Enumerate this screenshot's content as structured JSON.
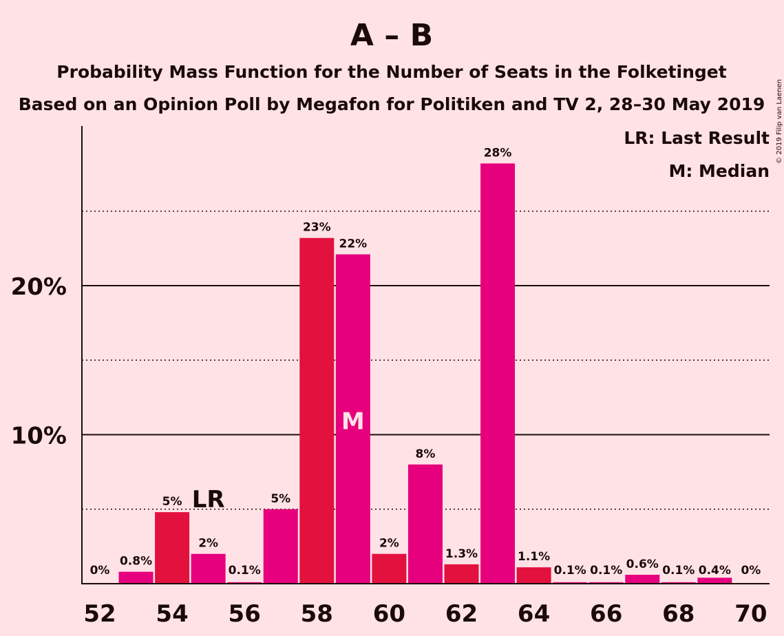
{
  "chart_data": {
    "type": "bar",
    "title": "A – B",
    "subtitle_1": "Probability Mass Function for the Number of Seats in the Folketinget",
    "subtitle_2": "Based on an Opinion Poll by Megafon for Politiken and TV 2, 28–30 May 2019",
    "copyright": "© 2019 Filip van Laenen",
    "legend": {
      "position": "top-right",
      "lr": "LR: Last Result",
      "median": "M: Median"
    },
    "ylim": [
      0,
      30
    ],
    "y_ticks": [
      {
        "value": 10,
        "label": "10%"
      },
      {
        "value": 20,
        "label": "20%"
      }
    ],
    "y_dotted": [
      5,
      15,
      25
    ],
    "x_ticks": [
      52,
      54,
      56,
      58,
      60,
      62,
      64,
      66,
      68,
      70
    ],
    "last_result_seat": 55,
    "last_result_marker": "LR",
    "median_seat": 59,
    "median_marker": "M",
    "colors": {
      "background": "#FFE2E6",
      "primary": "#E6007E",
      "secondary": "#E3113E",
      "text": "#1a0a0a",
      "median_text": "#FFE2E6"
    },
    "bars": [
      {
        "seat": 52,
        "value": 0,
        "label": "0%",
        "color": "primary"
      },
      {
        "seat": 53,
        "value": 0.8,
        "label": "0.8%",
        "color": "primary"
      },
      {
        "seat": 54,
        "value": 4.8,
        "label": "5%",
        "color": "secondary"
      },
      {
        "seat": 55,
        "value": 2.0,
        "label": "2%",
        "color": "primary"
      },
      {
        "seat": 56,
        "value": 0.1,
        "label": "0.1%",
        "color": "primary"
      },
      {
        "seat": 57,
        "value": 5.0,
        "label": "5%",
        "color": "primary"
      },
      {
        "seat": 58,
        "value": 23.2,
        "label": "23%",
        "color": "secondary"
      },
      {
        "seat": 59,
        "value": 22.1,
        "label": "22%",
        "color": "primary"
      },
      {
        "seat": 60,
        "value": 2.0,
        "label": "2%",
        "color": "secondary"
      },
      {
        "seat": 61,
        "value": 8.0,
        "label": "8%",
        "color": "primary"
      },
      {
        "seat": 62,
        "value": 1.3,
        "label": "1.3%",
        "color": "secondary"
      },
      {
        "seat": 63,
        "value": 28.2,
        "label": "28%",
        "color": "primary"
      },
      {
        "seat": 64,
        "value": 1.1,
        "label": "1.1%",
        "color": "secondary"
      },
      {
        "seat": 65,
        "value": 0.1,
        "label": "0.1%",
        "color": "primary"
      },
      {
        "seat": 66,
        "value": 0.1,
        "label": "0.1%",
        "color": "primary"
      },
      {
        "seat": 67,
        "value": 0.6,
        "label": "0.6%",
        "color": "primary"
      },
      {
        "seat": 68,
        "value": 0.1,
        "label": "0.1%",
        "color": "primary"
      },
      {
        "seat": 69,
        "value": 0.4,
        "label": "0.4%",
        "color": "primary"
      },
      {
        "seat": 70,
        "value": 0,
        "label": "0%",
        "color": "primary"
      }
    ]
  }
}
